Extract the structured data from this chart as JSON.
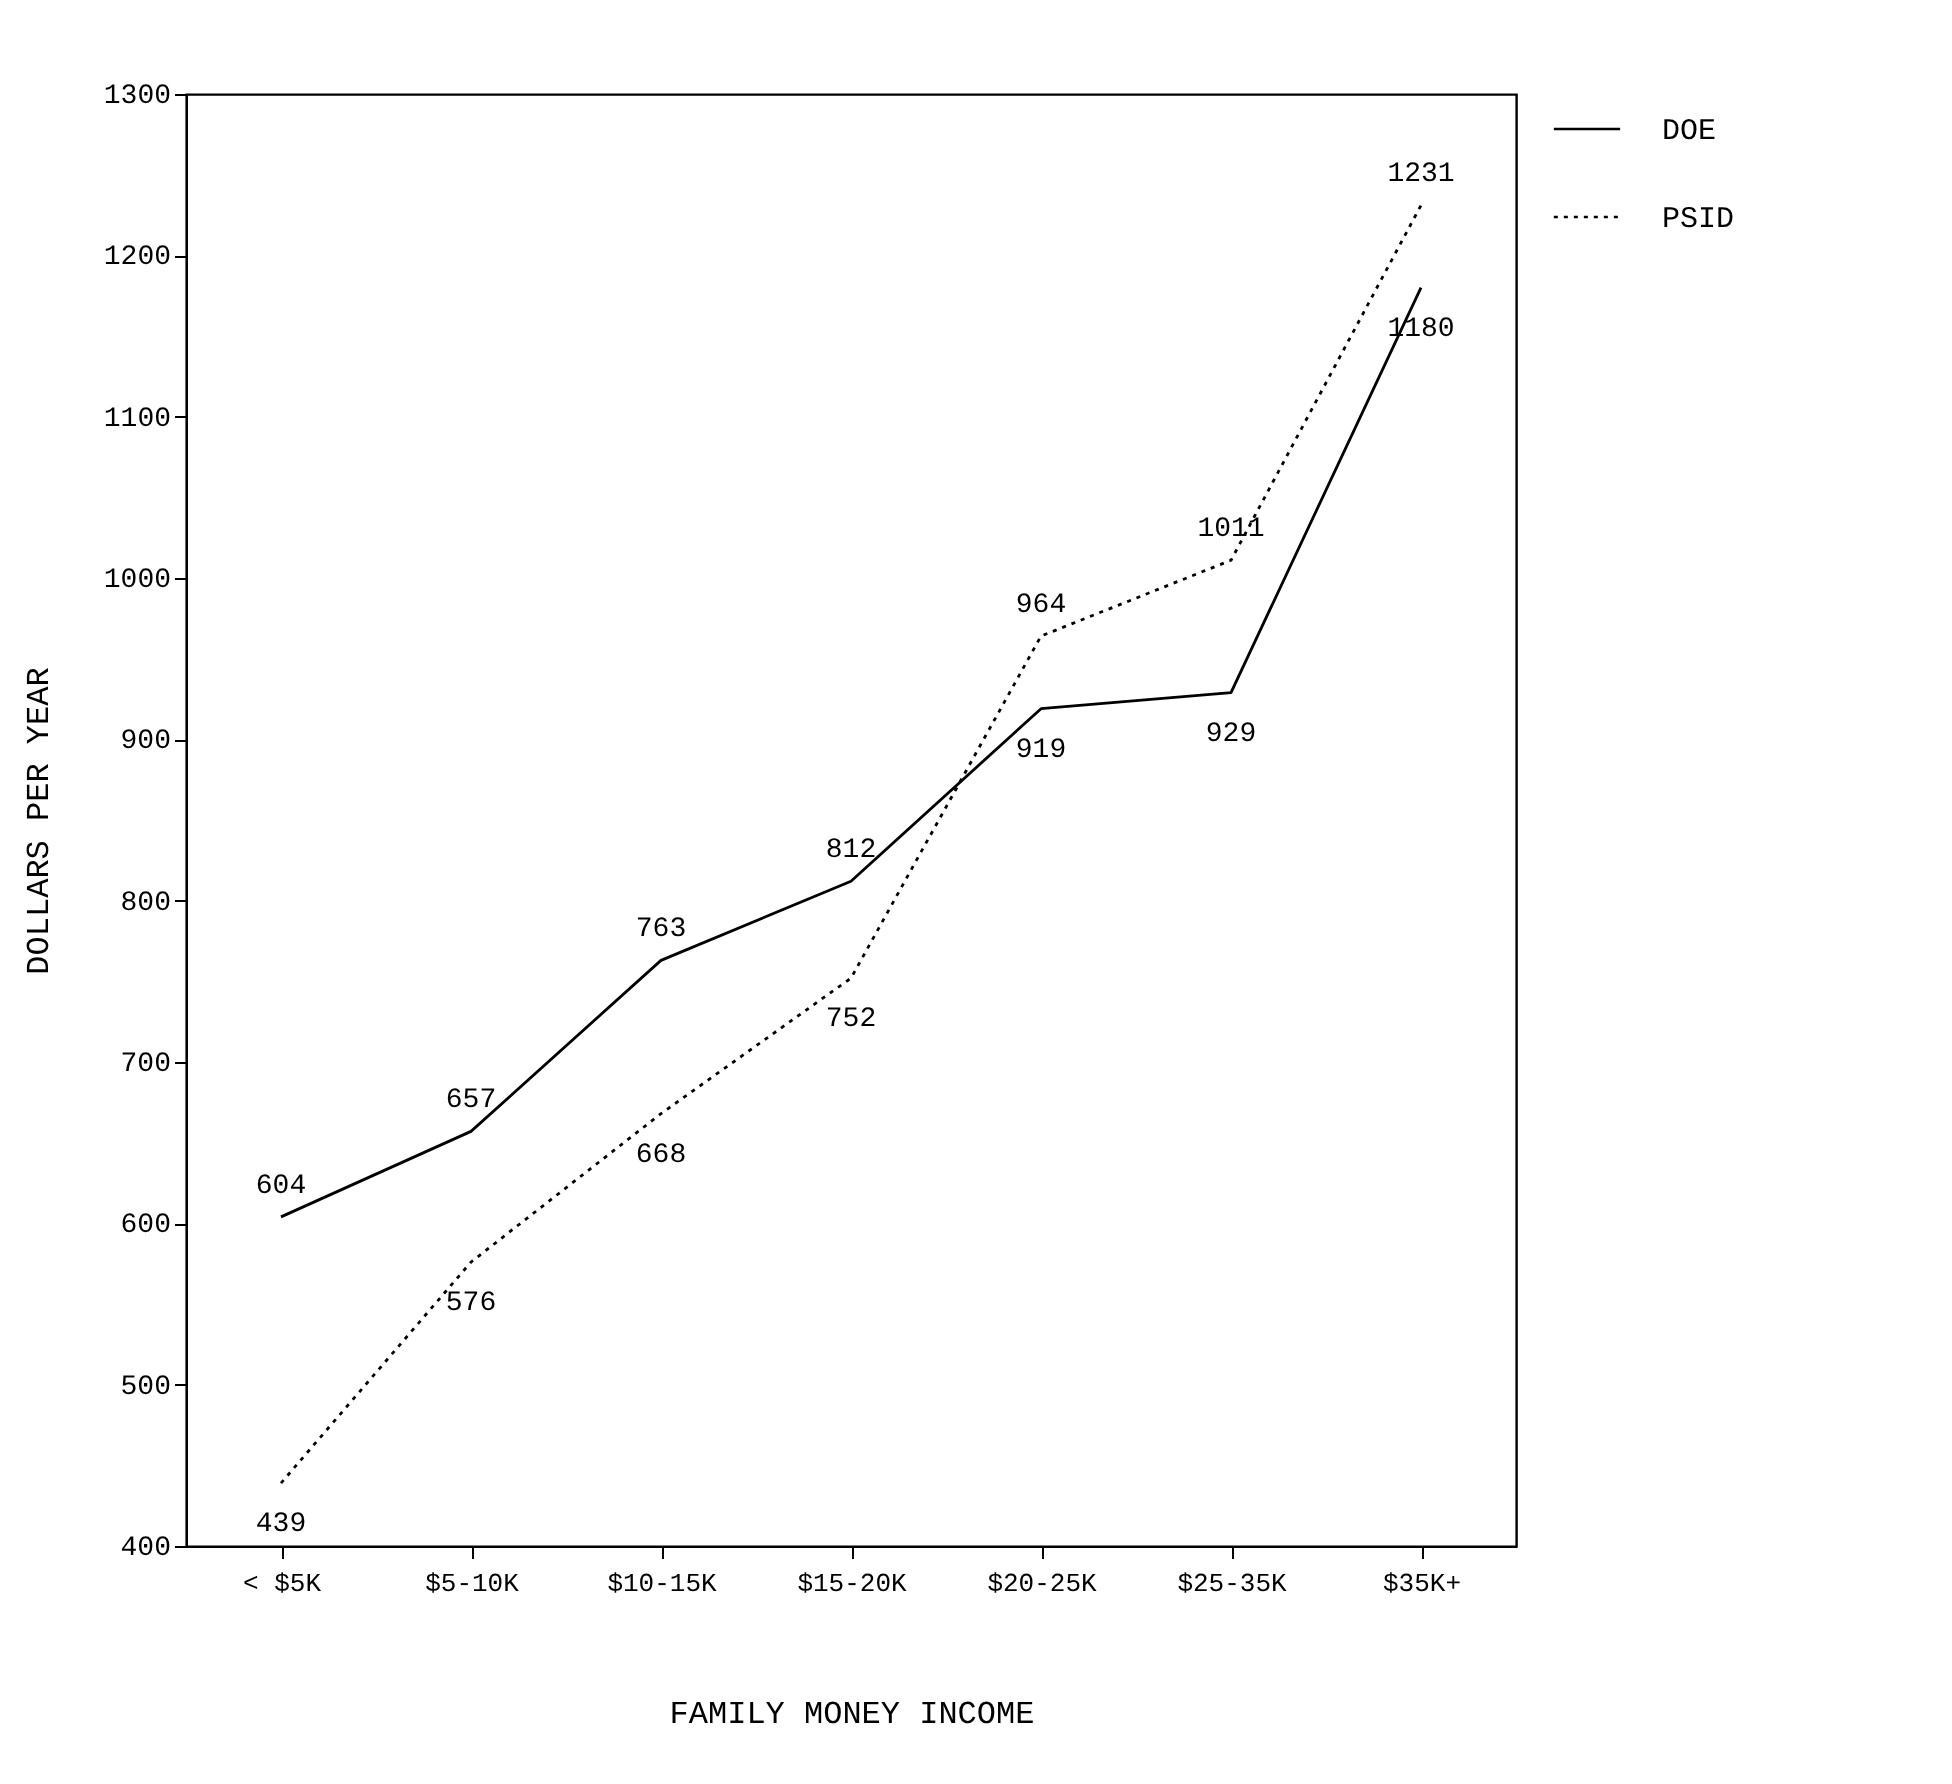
{
  "chart_data": {
    "type": "line",
    "xlabel": "FAMILY MONEY INCOME",
    "ylabel": "DOLLARS PER YEAR",
    "categories": [
      "< $5K",
      "$5-10K",
      "$10-15K",
      "$15-20K",
      "$20-25K",
      "$25-35K",
      "$35K+"
    ],
    "series": [
      {
        "name": "DOE",
        "color": "#000000",
        "line_style": "solid",
        "values": [
          604,
          657,
          763,
          812,
          919,
          929,
          1180
        ]
      },
      {
        "name": "PSID",
        "color": "#000000",
        "line_style": "dotted",
        "values": [
          439,
          576,
          668,
          752,
          964,
          1011,
          1231
        ]
      }
    ],
    "ylim": [
      400,
      1300
    ],
    "yticks": [
      400,
      500,
      600,
      700,
      800,
      900,
      1000,
      1100,
      1200,
      1300
    ],
    "grid": false,
    "legend": "top right",
    "data_labels": true,
    "marker": "none"
  }
}
